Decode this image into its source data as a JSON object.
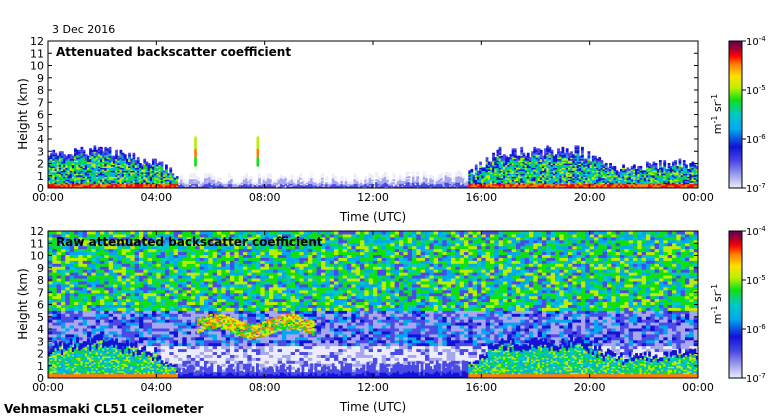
{
  "date": "3 Dec 2016",
  "footer": "Vehmasmaki CL51 ceilometer",
  "colors": {
    "scale": [
      "#ececfa",
      "#a7a7ee",
      "#4a4ae6",
      "#1212d8",
      "#00a8f0",
      "#00c8c8",
      "#10e010",
      "#b8f000",
      "#ffe000",
      "#ff8000",
      "#ff0000",
      "#a00030",
      "#600060"
    ],
    "background": "#ffffff"
  },
  "chart_data": [
    {
      "type": "heatmap",
      "title": "Attenuated backscatter coefficient",
      "xlabel": "Time (UTC)",
      "ylabel": "Height (km)",
      "x_ticks": [
        "00:00",
        "04:00",
        "08:00",
        "12:00",
        "16:00",
        "20:00",
        "00:00"
      ],
      "y_ticks": [
        "0",
        "1",
        "2",
        "3",
        "4",
        "5",
        "6",
        "7",
        "8",
        "9",
        "10",
        "11",
        "12"
      ],
      "xlim": [
        0,
        24
      ],
      "ylim": [
        0,
        12
      ],
      "colorbar": {
        "label": "m-1 sr-1",
        "min": "10^-7",
        "max": "10^-4",
        "ticks": [
          "10-4",
          "10-5",
          "10-6",
          "10-7"
        ]
      },
      "structure": {
        "boundary_layer_tops_km": [
          [
            0,
            2.5
          ],
          [
            2,
            3.2
          ],
          [
            4,
            2.0
          ],
          [
            4.8,
            0.8
          ],
          [
            8,
            0.7
          ],
          [
            12,
            0.8
          ],
          [
            15.5,
            1.0
          ],
          [
            16.5,
            2.8
          ],
          [
            19.5,
            3.0
          ],
          [
            21,
            1.6
          ],
          [
            24,
            2.0
          ]
        ],
        "spikes": [
          [
            5.4,
            4.2
          ],
          [
            7.7,
            4.1
          ]
        ]
      }
    },
    {
      "type": "heatmap",
      "title": "Raw attenuated backscatter coefficient",
      "xlabel": "Time (UTC)",
      "ylabel": "Height (km)",
      "x_ticks": [
        "00:00",
        "04:00",
        "08:00",
        "12:00",
        "16:00",
        "20:00",
        "00:00"
      ],
      "y_ticks": [
        "0",
        "1",
        "2",
        "3",
        "4",
        "5",
        "6",
        "7",
        "8",
        "9",
        "10",
        "11",
        "12"
      ],
      "xlim": [
        0,
        24
      ],
      "ylim": [
        0,
        12
      ],
      "colorbar": {
        "label": "m-1 sr-1",
        "min": "10^-7",
        "max": "10^-4",
        "ticks": [
          "10-4",
          "10-5",
          "10-6",
          "10-7"
        ]
      },
      "structure": {
        "noise_layer_km": [
          5.5,
          12
        ],
        "elevated_layer": {
          "time_h": [
            5.5,
            9.8
          ],
          "height_km": [
            3.5,
            5.0
          ]
        }
      }
    }
  ]
}
